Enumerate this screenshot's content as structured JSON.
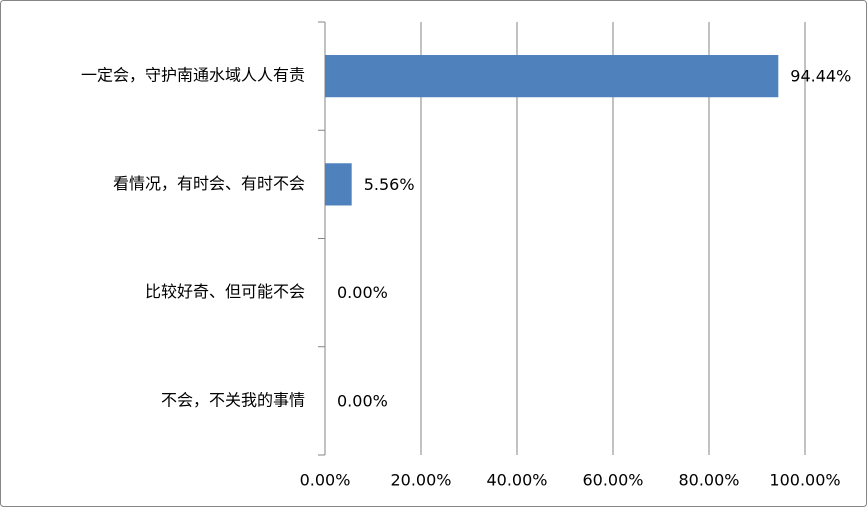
{
  "chart_data": {
    "type": "bar",
    "orientation": "horizontal",
    "categories": [
      "一定会，守护南通水域人人有责",
      "看情况，有时会、有时不会",
      "比较好奇、但可能不会",
      "不会，不关我的事情"
    ],
    "values": [
      94.44,
      5.56,
      0,
      0
    ],
    "value_labels": [
      "94.44%",
      "5.56%",
      "0.00%",
      "0.00%"
    ],
    "color": "#4f81bd",
    "xlim": [
      0,
      100
    ],
    "xticks": [
      {
        "value": 0,
        "label": "0.00%"
      },
      {
        "value": 20,
        "label": "20.00%"
      },
      {
        "value": 40,
        "label": "40.00%"
      },
      {
        "value": 60,
        "label": "60.00%"
      },
      {
        "value": 80,
        "label": "80.00%"
      },
      {
        "value": 100,
        "label": "100.00%"
      }
    ],
    "grid": true
  }
}
